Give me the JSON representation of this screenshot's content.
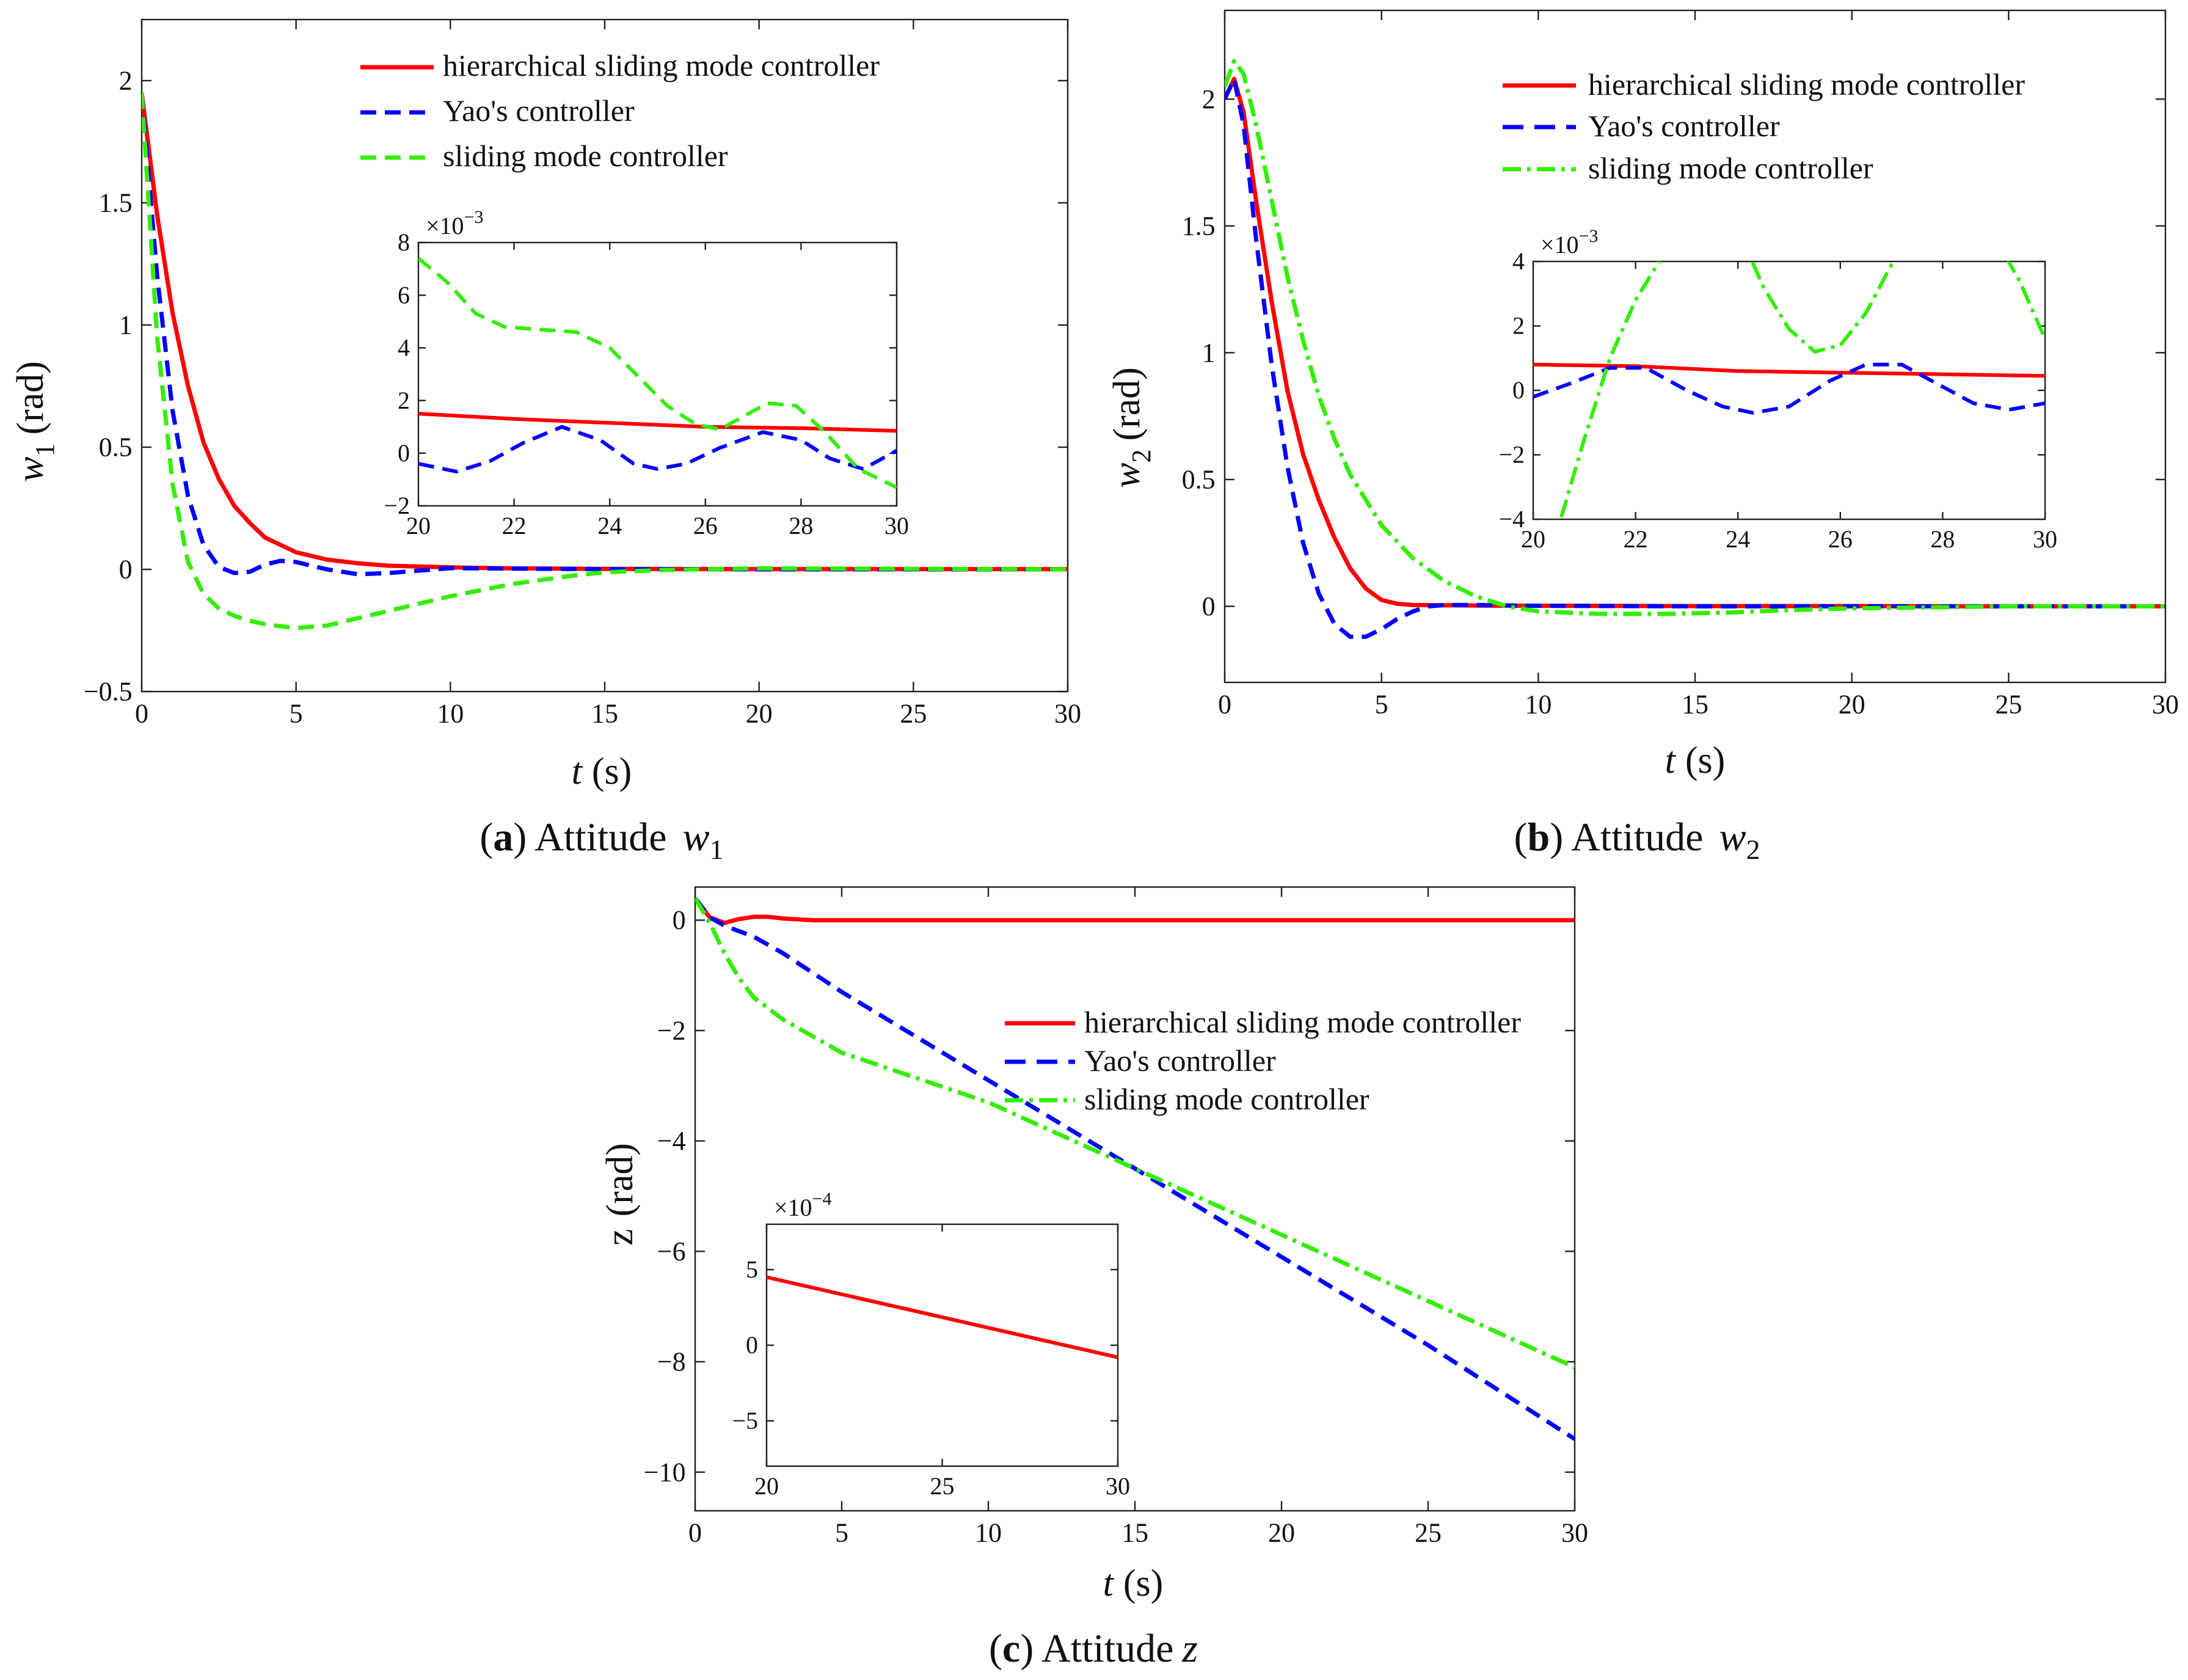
{
  "chart_data": [
    {
      "type": "line",
      "caption": {
        "letter": "a",
        "text": "Attitude",
        "symbol": "w",
        "subscript": "1"
      },
      "xlabel": {
        "var": "t",
        "unit": "(s)"
      },
      "ylabel": {
        "var": "w",
        "sub": "1",
        "unit": "(rad)"
      },
      "xlim": [
        0,
        30
      ],
      "ylim": [
        -0.5,
        2.25
      ],
      "xticks": [
        "0",
        "5",
        "10",
        "15",
        "20",
        "25",
        "30"
      ],
      "yticks": [
        "−0.5",
        "0",
        "0.5",
        "1",
        "1.5",
        "2"
      ],
      "ytick_values": [
        -0.5,
        0,
        0.5,
        1,
        1.5,
        2
      ],
      "legend": [
        "hierarchical sliding mode controller",
        "Yao's controller",
        "sliding mode controller"
      ],
      "legend_position": "top-right",
      "series": [
        {
          "name": "hierarchical sliding mode controller",
          "color": "#ff0000",
          "style": "solid",
          "x": [
            0,
            0.5,
            1,
            1.5,
            2,
            2.5,
            3,
            3.5,
            4,
            5,
            6,
            7,
            8,
            10,
            12,
            15,
            20,
            25,
            30
          ],
          "y": [
            1.95,
            1.45,
            1.05,
            0.75,
            0.52,
            0.37,
            0.26,
            0.19,
            0.13,
            0.07,
            0.04,
            0.025,
            0.015,
            0.008,
            0.004,
            0.002,
            0.001,
            0.001,
            0.001
          ]
        },
        {
          "name": "Yao's controller",
          "color": "#0000ff",
          "style": "dashed",
          "x": [
            0,
            0.5,
            1,
            1.5,
            2,
            2.5,
            3,
            3.5,
            4,
            4.5,
            5,
            6,
            7,
            8,
            9,
            10,
            12,
            15,
            20,
            25,
            30
          ],
          "y": [
            1.95,
            1.2,
            0.65,
            0.3,
            0.1,
            0.01,
            -0.015,
            -0.01,
            0.02,
            0.035,
            0.03,
            0.0,
            -0.02,
            -0.015,
            -0.005,
            0.005,
            0.003,
            0.001,
            0.0,
            0.0,
            0.0
          ]
        },
        {
          "name": "sliding mode controller",
          "color": "#33ee00",
          "style": "dashed",
          "x": [
            0,
            0.5,
            1,
            1.5,
            2,
            2.5,
            3,
            3.5,
            4,
            5,
            6,
            7,
            8,
            10,
            12,
            14,
            15,
            17,
            20,
            25,
            30
          ],
          "y": [
            1.95,
            0.95,
            0.35,
            0.03,
            -0.1,
            -0.16,
            -0.19,
            -0.21,
            -0.225,
            -0.24,
            -0.23,
            -0.2,
            -0.17,
            -0.11,
            -0.06,
            -0.025,
            -0.012,
            -0.002,
            0.004,
            0.002,
            0.0
          ]
        }
      ],
      "inset": {
        "xlim": [
          20,
          30
        ],
        "ylim": [
          -2,
          8
        ],
        "exponent": "−3",
        "xticks": [
          "20",
          "22",
          "24",
          "26",
          "28",
          "30"
        ],
        "xtick_values": [
          20,
          22,
          24,
          26,
          28,
          30
        ],
        "yticks": [
          "−2",
          "0",
          "2",
          "4",
          "6",
          "8"
        ],
        "ytick_values": [
          -2,
          0,
          2,
          4,
          6,
          8
        ],
        "series": [
          {
            "name": "hierarchical sliding mode controller",
            "color": "#ff0000",
            "style": "solid",
            "x": [
              20,
              22,
              24,
              26,
              28,
              30
            ],
            "y": [
              1.5,
              1.3,
              1.15,
              1.0,
              0.95,
              0.85
            ]
          },
          {
            "name": "Yao's controller",
            "color": "#0000ff",
            "style": "dashed",
            "x": [
              20,
              20.8,
              21.5,
              22.2,
              23.0,
              23.8,
              24.5,
              25.0,
              25.6,
              26.3,
              27.2,
              28.0,
              28.6,
              29.3,
              30
            ],
            "y": [
              -0.4,
              -0.7,
              -0.3,
              0.4,
              1.0,
              0.5,
              -0.4,
              -0.6,
              -0.4,
              0.2,
              0.8,
              0.5,
              -0.2,
              -0.6,
              0.1
            ]
          },
          {
            "name": "sliding mode controller",
            "color": "#33ee00",
            "style": "dashed",
            "x": [
              20,
              20.6,
              21.2,
              21.8,
              22.5,
              23.3,
              24.0,
              24.6,
              25.2,
              25.8,
              26.3,
              26.8,
              27.3,
              27.9,
              28.5,
              29.2,
              30
            ],
            "y": [
              7.4,
              6.5,
              5.3,
              4.8,
              4.7,
              4.6,
              4.0,
              2.9,
              1.8,
              1.1,
              0.9,
              1.4,
              1.9,
              1.8,
              0.8,
              -0.6,
              -1.3
            ]
          }
        ]
      }
    },
    {
      "type": "line",
      "caption": {
        "letter": "b",
        "text": "Attitude",
        "symbol": "w",
        "subscript": "2"
      },
      "xlabel": {
        "var": "t",
        "unit": "(s)"
      },
      "ylabel": {
        "var": "w",
        "sub": "2",
        "unit": "(rad)"
      },
      "xlim": [
        0,
        30
      ],
      "ylim": [
        -0.3,
        2.35
      ],
      "xticks": [
        "0",
        "5",
        "10",
        "15",
        "20",
        "25",
        "30"
      ],
      "yticks": [
        "0",
        "0.5",
        "1",
        "1.5",
        "2"
      ],
      "ytick_values": [
        0,
        0.5,
        1,
        1.5,
        2
      ],
      "legend": [
        "hierarchical sliding mode controller",
        "Yao's controller",
        "sliding mode controller"
      ],
      "legend_position": "top-right",
      "series": [
        {
          "name": "hierarchical sliding mode controller",
          "color": "#ff0000",
          "style": "solid",
          "x": [
            0,
            0.3,
            0.6,
            1,
            1.5,
            2,
            2.5,
            3,
            3.5,
            4,
            4.5,
            5,
            5.5,
            6,
            8,
            10,
            15,
            20,
            25,
            30
          ],
          "y": [
            2.0,
            2.08,
            1.95,
            1.6,
            1.2,
            0.85,
            0.6,
            0.42,
            0.27,
            0.15,
            0.07,
            0.025,
            0.01,
            0.005,
            0.003,
            0.002,
            0.001,
            0.001,
            0.0,
            0.0
          ]
        },
        {
          "name": "Yao's controller",
          "color": "#0000ff",
          "style": "dashed",
          "x": [
            0,
            0.3,
            0.6,
            1,
            1.5,
            2,
            2.5,
            3,
            3.5,
            4,
            4.5,
            5,
            5.5,
            6,
            6.5,
            7,
            8,
            10,
            15,
            20,
            25,
            30
          ],
          "y": [
            2.0,
            2.08,
            1.9,
            1.45,
            0.95,
            0.55,
            0.25,
            0.05,
            -0.07,
            -0.12,
            -0.12,
            -0.09,
            -0.05,
            -0.02,
            0.0,
            0.005,
            0.005,
            0.002,
            0.0,
            0.0,
            0.0,
            0.0
          ]
        },
        {
          "name": "sliding mode controller",
          "color": "#33ee00",
          "style": "dash-dot",
          "x": [
            0,
            0.3,
            0.6,
            1,
            1.5,
            2,
            2.5,
            3,
            3.5,
            4,
            5,
            6,
            7,
            8,
            9,
            10,
            12,
            14,
            16,
            18,
            20,
            25,
            30
          ],
          "y": [
            2.05,
            2.15,
            2.1,
            1.9,
            1.6,
            1.3,
            1.05,
            0.83,
            0.66,
            0.52,
            0.32,
            0.19,
            0.1,
            0.04,
            0.0,
            -0.02,
            -0.03,
            -0.03,
            -0.025,
            -0.015,
            -0.008,
            0.0,
            0.0
          ]
        }
      ],
      "inset": {
        "xlim": [
          20,
          30
        ],
        "ylim": [
          -4,
          4
        ],
        "exponent": "−3",
        "xticks": [
          "20",
          "22",
          "24",
          "26",
          "28",
          "30"
        ],
        "xtick_values": [
          20,
          22,
          24,
          26,
          28,
          30
        ],
        "yticks": [
          "−4",
          "−2",
          "0",
          "2",
          "4"
        ],
        "ytick_values": [
          -4,
          -2,
          0,
          2,
          4
        ],
        "series": [
          {
            "name": "hierarchical sliding mode controller",
            "color": "#ff0000",
            "style": "solid",
            "x": [
              20,
              22,
              24,
              26,
              28,
              30
            ],
            "y": [
              0.8,
              0.75,
              0.6,
              0.55,
              0.5,
              0.45
            ]
          },
          {
            "name": "Yao's controller",
            "color": "#0000ff",
            "style": "dashed",
            "x": [
              20,
              20.7,
              21.5,
              22.2,
              23.0,
              23.7,
              24.3,
              25.0,
              25.8,
              26.5,
              27.2,
              27.9,
              28.6,
              29.3,
              30
            ],
            "y": [
              -0.2,
              0.2,
              0.7,
              0.7,
              0.0,
              -0.5,
              -0.7,
              -0.5,
              0.3,
              0.8,
              0.8,
              0.2,
              -0.4,
              -0.6,
              -0.4
            ]
          },
          {
            "name": "sliding mode controller",
            "color": "#33ee00",
            "style": "dash-dot",
            "x": [
              20,
              20.5,
              21.0,
              21.5,
              22.0,
              22.5,
              23.0,
              24.0,
              24.5,
              25.0,
              25.5,
              26.0,
              26.5,
              27.0,
              27.5,
              28.5,
              29.0,
              29.5,
              30
            ],
            "y": [
              -7.0,
              -4.2,
              -1.5,
              1.0,
              2.8,
              4.1,
              5.2,
              5.0,
              3.2,
              1.9,
              1.2,
              1.4,
              2.4,
              3.9,
              5.3,
              6.0,
              4.8,
              3.4,
              1.6
            ]
          }
        ]
      }
    },
    {
      "type": "line",
      "caption": {
        "letter": "c",
        "text": "Attitude",
        "symbol": "z",
        "subscript": ""
      },
      "xlabel": {
        "var": "t",
        "unit": "(s)"
      },
      "ylabel": {
        "var": "z",
        "sub": "",
        "unit": "(rad)"
      },
      "xlim": [
        0,
        30
      ],
      "ylim": [
        -10.7,
        0.6
      ],
      "xticks": [
        "0",
        "5",
        "10",
        "15",
        "20",
        "25",
        "30"
      ],
      "yticks": [
        "−10",
        "−8",
        "−6",
        "−4",
        "−2",
        "0"
      ],
      "ytick_values": [
        -10,
        -8,
        -6,
        -4,
        -2,
        0
      ],
      "legend": [
        "hierarchical sliding mode controller",
        "Yao's controller",
        "sliding mode controller"
      ],
      "legend_position": "top-right",
      "series": [
        {
          "name": "hierarchical sliding mode controller",
          "color": "#ff0000",
          "style": "solid",
          "x": [
            0,
            0.5,
            1,
            1.5,
            2,
            2.5,
            3,
            4,
            5,
            10,
            20,
            30
          ],
          "y": [
            0.4,
            0.05,
            -0.05,
            0.02,
            0.06,
            0.06,
            0.03,
            0.0,
            0.0,
            0.0,
            0.0,
            0.0
          ]
        },
        {
          "name": "Yao's controller",
          "color": "#0000ff",
          "style": "dashed",
          "x": [
            0,
            0.5,
            1,
            1.5,
            2,
            3,
            5,
            10,
            15,
            20,
            25,
            30
          ],
          "y": [
            0.4,
            0.05,
            -0.1,
            -0.2,
            -0.3,
            -0.6,
            -1.3,
            -2.9,
            -4.5,
            -6.1,
            -7.7,
            -9.4
          ]
        },
        {
          "name": "sliding mode controller",
          "color": "#33ee00",
          "style": "dash-dot",
          "x": [
            0,
            0.5,
            1,
            1.5,
            2,
            3,
            4,
            5,
            10,
            15,
            20,
            25,
            30
          ],
          "y": [
            0.4,
            -0.05,
            -0.6,
            -1.05,
            -1.4,
            -1.8,
            -2.1,
            -2.4,
            -3.3,
            -4.5,
            -5.7,
            -6.9,
            -8.1
          ]
        }
      ],
      "inset": {
        "xlim": [
          20,
          30
        ],
        "ylim": [
          -8,
          8
        ],
        "exponent": "−4",
        "xticks": [
          "20",
          "25",
          "30"
        ],
        "xtick_values": [
          20,
          25,
          30
        ],
        "yticks": [
          "−5",
          "0",
          "5"
        ],
        "ytick_values": [
          -5,
          0,
          5
        ],
        "series": [
          {
            "name": "hierarchical sliding mode controller",
            "color": "#ff0000",
            "style": "solid",
            "x": [
              20,
              30
            ],
            "y": [
              4.5,
              -0.8
            ]
          }
        ]
      }
    }
  ]
}
